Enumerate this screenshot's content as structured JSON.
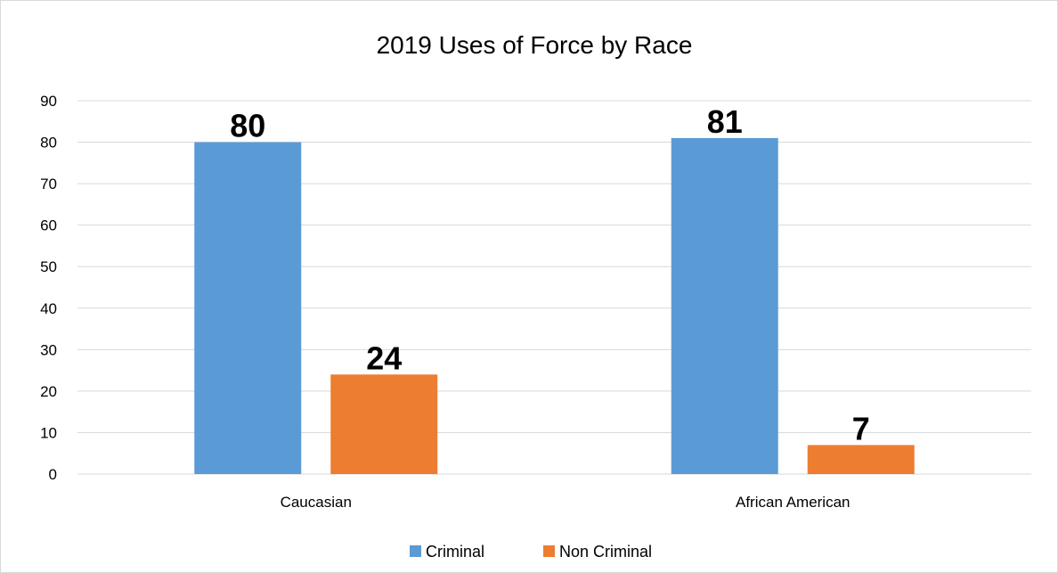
{
  "chart_data": {
    "type": "bar",
    "title": "2019 Uses of Force by Race",
    "categories": [
      "Caucasian",
      "African American"
    ],
    "series": [
      {
        "name": "Criminal",
        "values": [
          80,
          81
        ],
        "color": "#5b9bd5"
      },
      {
        "name": "Non Criminal",
        "values": [
          24,
          7
        ],
        "color": "#ed7d31"
      }
    ],
    "ylim": [
      0,
      90
    ],
    "yticks": [
      0,
      10,
      20,
      30,
      40,
      50,
      60,
      70,
      80,
      90
    ],
    "xlabel": "",
    "ylabel": "",
    "grid": true,
    "legend": "bottom",
    "data_labels": true
  }
}
